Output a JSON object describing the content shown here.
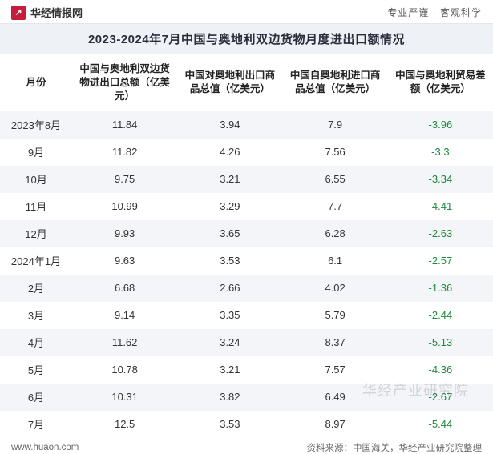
{
  "header": {
    "site_name": "华经情报网",
    "logo_letter": "↗",
    "tagline": "专业严谨 · 客观科学"
  },
  "title": "2023-2024年7月中国与奥地利双边货物月度进出口额情况",
  "table": {
    "columns": [
      "月份",
      "中国与奥地利双边货物进出口总额（亿美元）",
      "中国对奥地利出口商品总值（亿美元）",
      "中国自奥地利进口商品总值（亿美元）",
      "中国与奥地利贸易差额（亿美元）"
    ],
    "rows": [
      {
        "month": "2023年8月",
        "total": "11.84",
        "export": "3.94",
        "import": "7.9",
        "balance": "-3.96"
      },
      {
        "month": "9月",
        "total": "11.82",
        "export": "4.26",
        "import": "7.56",
        "balance": "-3.3"
      },
      {
        "month": "10月",
        "total": "9.75",
        "export": "3.21",
        "import": "6.55",
        "balance": "-3.34"
      },
      {
        "month": "11月",
        "total": "10.99",
        "export": "3.29",
        "import": "7.7",
        "balance": "-4.41"
      },
      {
        "month": "12月",
        "total": "9.93",
        "export": "3.65",
        "import": "6.28",
        "balance": "-2.63"
      },
      {
        "month": "2024年1月",
        "total": "9.63",
        "export": "3.53",
        "import": "6.1",
        "balance": "-2.57"
      },
      {
        "month": "2月",
        "total": "6.68",
        "export": "2.66",
        "import": "4.02",
        "balance": "-1.36"
      },
      {
        "month": "3月",
        "total": "9.14",
        "export": "3.35",
        "import": "5.79",
        "balance": "-2.44"
      },
      {
        "month": "4月",
        "total": "11.62",
        "export": "3.24",
        "import": "8.37",
        "balance": "-5.13"
      },
      {
        "month": "5月",
        "total": "10.78",
        "export": "3.21",
        "import": "7.57",
        "balance": "-4.36"
      },
      {
        "month": "6月",
        "total": "10.31",
        "export": "3.82",
        "import": "6.49",
        "balance": "-2.67"
      },
      {
        "month": "7月",
        "total": "12.5",
        "export": "3.53",
        "import": "8.97",
        "balance": "-5.44"
      }
    ],
    "header_bg": "#ffffff",
    "row_alt_bg": "#f3f5f8",
    "balance_color": "#1e8a3a"
  },
  "footer": {
    "url": "www.huaon.com",
    "source": "资料来源：中国海关，华经产业研究院整理"
  },
  "watermark": "华经产业研究院"
}
